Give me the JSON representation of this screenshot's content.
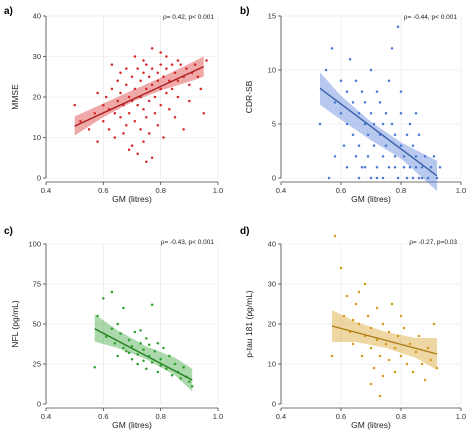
{
  "chart_data": [
    {
      "type": "scatter",
      "panel": "a)",
      "annotation": "ρ= 0.42, p< 0.001",
      "xlabel": "GM (litres)",
      "ylabel": "MMSE",
      "xlim": [
        0.4,
        1.0
      ],
      "ylim": [
        0,
        40
      ],
      "xticks": [
        "0.4",
        "0.6",
        "0.8",
        "1.0"
      ],
      "yticks": [
        "0",
        "10",
        "20",
        "30",
        "40"
      ],
      "grid": true,
      "color": "#d62728",
      "fit": {
        "x": [
          0.5,
          0.95
        ],
        "y": [
          12.8,
          27.5
        ]
      },
      "ci": {
        "x": [
          0.5,
          0.6,
          0.7,
          0.8,
          0.9,
          0.95
        ],
        "lower": [
          10.5,
          15.0,
          18.8,
          21.6,
          23.8,
          25.0
        ],
        "upper": [
          15.2,
          18.4,
          21.6,
          24.8,
          28.2,
          30.0
        ]
      },
      "points": [
        [
          0.5,
          18
        ],
        [
          0.52,
          14
        ],
        [
          0.55,
          12
        ],
        [
          0.57,
          16
        ],
        [
          0.58,
          9
        ],
        [
          0.6,
          18
        ],
        [
          0.6,
          14
        ],
        [
          0.61,
          20
        ],
        [
          0.62,
          17
        ],
        [
          0.62,
          12
        ],
        [
          0.63,
          22
        ],
        [
          0.64,
          16
        ],
        [
          0.64,
          10
        ],
        [
          0.65,
          19
        ],
        [
          0.65,
          24
        ],
        [
          0.66,
          15
        ],
        [
          0.66,
          21
        ],
        [
          0.67,
          18
        ],
        [
          0.67,
          11
        ],
        [
          0.68,
          27
        ],
        [
          0.68,
          23
        ],
        [
          0.68,
          13
        ],
        [
          0.69,
          20
        ],
        [
          0.69,
          16
        ],
        [
          0.7,
          25
        ],
        [
          0.7,
          19
        ],
        [
          0.7,
          8
        ],
        [
          0.71,
          22
        ],
        [
          0.71,
          14
        ],
        [
          0.72,
          27
        ],
        [
          0.72,
          18
        ],
        [
          0.72,
          6
        ],
        [
          0.73,
          24
        ],
        [
          0.73,
          20
        ],
        [
          0.73,
          12
        ],
        [
          0.74,
          26
        ],
        [
          0.74,
          17
        ],
        [
          0.74,
          9
        ],
        [
          0.75,
          28
        ],
        [
          0.75,
          22
        ],
        [
          0.75,
          15
        ],
        [
          0.76,
          25
        ],
        [
          0.76,
          19
        ],
        [
          0.76,
          11
        ],
        [
          0.77,
          27
        ],
        [
          0.77,
          23
        ],
        [
          0.77,
          5
        ],
        [
          0.78,
          20
        ],
        [
          0.78,
          16
        ],
        [
          0.79,
          26
        ],
        [
          0.79,
          24
        ],
        [
          0.79,
          13
        ],
        [
          0.8,
          28
        ],
        [
          0.8,
          22
        ],
        [
          0.8,
          18
        ],
        [
          0.81,
          25
        ],
        [
          0.81,
          10
        ],
        [
          0.82,
          27
        ],
        [
          0.82,
          21
        ],
        [
          0.83,
          24
        ],
        [
          0.83,
          17
        ],
        [
          0.84,
          28
        ],
        [
          0.84,
          22
        ],
        [
          0.85,
          26
        ],
        [
          0.85,
          15
        ],
        [
          0.86,
          24
        ],
        [
          0.86,
          20
        ],
        [
          0.87,
          28
        ],
        [
          0.88,
          25
        ],
        [
          0.88,
          12
        ],
        [
          0.89,
          27
        ],
        [
          0.9,
          23
        ],
        [
          0.91,
          26
        ],
        [
          0.92,
          28
        ],
        [
          0.93,
          25
        ],
        [
          0.95,
          16
        ],
        [
          0.96,
          29
        ],
        [
          0.63,
          28
        ],
        [
          0.71,
          30
        ],
        [
          0.77,
          32
        ],
        [
          0.82,
          30
        ],
        [
          0.66,
          26
        ],
        [
          0.74,
          29
        ],
        [
          0.8,
          31
        ],
        [
          0.69,
          7
        ],
        [
          0.75,
          4
        ],
        [
          0.58,
          21
        ],
        [
          0.86,
          29
        ],
        [
          0.9,
          19
        ],
        [
          0.94,
          22
        ]
      ]
    },
    {
      "type": "scatter",
      "panel": "b)",
      "annotation": "ρ= -0.44, p< 0.001",
      "xlabel": "GM (litres)",
      "ylabel": "CDR-SB",
      "xlim": [
        0.4,
        1.0
      ],
      "ylim": [
        0,
        15
      ],
      "xticks": [
        "0.4",
        "0.6",
        "0.8",
        "1.0"
      ],
      "yticks": [
        "0",
        "5",
        "10",
        "15"
      ],
      "grid": true,
      "color": "#4a78d4",
      "fit": {
        "x": [
          0.53,
          0.92
        ],
        "y": [
          8.3,
          0.2
        ]
      },
      "ci": {
        "x": [
          0.53,
          0.6,
          0.7,
          0.8,
          0.92
        ],
        "lower": [
          6.8,
          5.4,
          3.5,
          1.8,
          -1.2
        ],
        "upper": [
          9.8,
          7.6,
          5.2,
          3.3,
          1.6
        ]
      },
      "points": [
        [
          0.53,
          5
        ],
        [
          0.55,
          10
        ],
        [
          0.57,
          12
        ],
        [
          0.58,
          7
        ],
        [
          0.6,
          6
        ],
        [
          0.6,
          9
        ],
        [
          0.61,
          3
        ],
        [
          0.62,
          8
        ],
        [
          0.62,
          5
        ],
        [
          0.63,
          11
        ],
        [
          0.64,
          4
        ],
        [
          0.64,
          7
        ],
        [
          0.65,
          2
        ],
        [
          0.65,
          9
        ],
        [
          0.66,
          6
        ],
        [
          0.66,
          3
        ],
        [
          0.67,
          8
        ],
        [
          0.67,
          1
        ],
        [
          0.68,
          5
        ],
        [
          0.68,
          7
        ],
        [
          0.69,
          2
        ],
        [
          0.69,
          4
        ],
        [
          0.7,
          10
        ],
        [
          0.7,
          6
        ],
        [
          0.7,
          0
        ],
        [
          0.71,
          3
        ],
        [
          0.71,
          5
        ],
        [
          0.72,
          8
        ],
        [
          0.72,
          1
        ],
        [
          0.73,
          4
        ],
        [
          0.73,
          7
        ],
        [
          0.74,
          2
        ],
        [
          0.74,
          0
        ],
        [
          0.75,
          6
        ],
        [
          0.75,
          3
        ],
        [
          0.76,
          9
        ],
        [
          0.76,
          1
        ],
        [
          0.77,
          5
        ],
        [
          0.77,
          12
        ],
        [
          0.78,
          2
        ],
        [
          0.78,
          4
        ],
        [
          0.79,
          14
        ],
        [
          0.79,
          0
        ],
        [
          0.8,
          3
        ],
        [
          0.8,
          6
        ],
        [
          0.81,
          1
        ],
        [
          0.81,
          2
        ],
        [
          0.82,
          4
        ],
        [
          0.82,
          0
        ],
        [
          0.83,
          5
        ],
        [
          0.83,
          1
        ],
        [
          0.84,
          3
        ],
        [
          0.84,
          0
        ],
        [
          0.85,
          2
        ],
        [
          0.85,
          1
        ],
        [
          0.86,
          0
        ],
        [
          0.86,
          4
        ],
        [
          0.87,
          1
        ],
        [
          0.87,
          0
        ],
        [
          0.88,
          2
        ],
        [
          0.89,
          0
        ],
        [
          0.9,
          1
        ],
        [
          0.91,
          2
        ],
        [
          0.92,
          0
        ],
        [
          0.93,
          1
        ],
        [
          0.66,
          0
        ],
        [
          0.72,
          0
        ],
        [
          0.78,
          1
        ],
        [
          0.62,
          1
        ],
        [
          0.58,
          2
        ],
        [
          0.56,
          0
        ],
        [
          0.68,
          1
        ],
        [
          0.74,
          5
        ],
        [
          0.8,
          8
        ],
        [
          0.85,
          6
        ]
      ]
    },
    {
      "type": "scatter",
      "panel": "c)",
      "annotation": "ρ= -0.43, p< 0.001",
      "xlabel": "GM (litres)",
      "ylabel": "NFL (pg/mL)",
      "xlim": [
        0.4,
        1.0
      ],
      "ylim": [
        0,
        100
      ],
      "xticks": [
        "0.4",
        "0.6",
        "0.8",
        "1.0"
      ],
      "yticks": [
        "0",
        "25",
        "50",
        "75",
        "100"
      ],
      "grid": true,
      "color": "#2ca02c",
      "fit": {
        "x": [
          0.57,
          0.91
        ],
        "y": [
          47,
          15
        ]
      },
      "ci": {
        "x": [
          0.57,
          0.65,
          0.75,
          0.85,
          0.91
        ],
        "lower": [
          39,
          35,
          28,
          18,
          8
        ],
        "upper": [
          56,
          46,
          36,
          29,
          22
        ]
      },
      "points": [
        [
          0.58,
          55
        ],
        [
          0.6,
          66
        ],
        [
          0.61,
          42
        ],
        [
          0.63,
          70
        ],
        [
          0.63,
          47
        ],
        [
          0.64,
          38
        ],
        [
          0.65,
          30
        ],
        [
          0.66,
          44
        ],
        [
          0.67,
          35
        ],
        [
          0.67,
          60
        ],
        [
          0.68,
          33
        ],
        [
          0.69,
          40
        ],
        [
          0.7,
          28
        ],
        [
          0.7,
          36
        ],
        [
          0.71,
          45
        ],
        [
          0.72,
          31
        ],
        [
          0.72,
          25
        ],
        [
          0.73,
          38
        ],
        [
          0.74,
          27
        ],
        [
          0.74,
          34
        ],
        [
          0.75,
          22
        ],
        [
          0.75,
          41
        ],
        [
          0.76,
          30
        ],
        [
          0.77,
          62
        ],
        [
          0.77,
          26
        ],
        [
          0.78,
          33
        ],
        [
          0.79,
          20
        ],
        [
          0.8,
          28
        ],
        [
          0.8,
          24
        ],
        [
          0.81,
          35
        ],
        [
          0.82,
          22
        ],
        [
          0.83,
          30
        ],
        [
          0.84,
          18
        ],
        [
          0.85,
          25
        ],
        [
          0.86,
          20
        ],
        [
          0.87,
          16
        ],
        [
          0.88,
          23
        ],
        [
          0.89,
          17
        ],
        [
          0.9,
          14
        ],
        [
          0.91,
          11
        ],
        [
          0.57,
          23
        ],
        [
          0.65,
          50
        ],
        [
          0.73,
          46
        ],
        [
          0.79,
          38
        ],
        [
          0.69,
          32
        ],
        [
          0.76,
          37
        ]
      ]
    },
    {
      "type": "scatter",
      "panel": "d)",
      "annotation": "ρ= -0.27, p=0.03",
      "xlabel": "GM (litres)",
      "ylabel": "p-tau 181 (pg/mL)",
      "xlim": [
        0.4,
        1.0
      ],
      "ylim": [
        0,
        40
      ],
      "xticks": [
        "0.4",
        "0.6",
        "0.8",
        "1.0"
      ],
      "yticks": [
        "0",
        "10",
        "20",
        "30",
        "40"
      ],
      "grid": true,
      "color": "#d69a1a",
      "fit": {
        "x": [
          0.57,
          0.92
        ],
        "y": [
          19.5,
          12.5
        ]
      },
      "ci": {
        "x": [
          0.57,
          0.65,
          0.75,
          0.85,
          0.92
        ],
        "lower": [
          15.5,
          15.5,
          14.0,
          11.5,
          8.5
        ],
        "upper": [
          23.5,
          20.5,
          18.0,
          16.5,
          16.5
        ]
      },
      "points": [
        [
          0.58,
          42
        ],
        [
          0.6,
          34
        ],
        [
          0.61,
          22
        ],
        [
          0.62,
          27
        ],
        [
          0.63,
          18
        ],
        [
          0.64,
          15
        ],
        [
          0.65,
          25
        ],
        [
          0.66,
          20
        ],
        [
          0.67,
          12
        ],
        [
          0.68,
          30
        ],
        [
          0.68,
          17
        ],
        [
          0.69,
          22
        ],
        [
          0.7,
          14
        ],
        [
          0.7,
          19
        ],
        [
          0.71,
          9
        ],
        [
          0.72,
          16
        ],
        [
          0.72,
          24
        ],
        [
          0.73,
          12
        ],
        [
          0.74,
          20
        ],
        [
          0.74,
          7
        ],
        [
          0.75,
          15
        ],
        [
          0.76,
          18
        ],
        [
          0.76,
          11
        ],
        [
          0.77,
          25
        ],
        [
          0.78,
          14
        ],
        [
          0.78,
          8
        ],
        [
          0.79,
          17
        ],
        [
          0.8,
          12
        ],
        [
          0.81,
          19
        ],
        [
          0.82,
          10
        ],
        [
          0.83,
          15
        ],
        [
          0.84,
          8
        ],
        [
          0.85,
          13
        ],
        [
          0.86,
          17
        ],
        [
          0.87,
          10
        ],
        [
          0.88,
          6
        ],
        [
          0.89,
          14
        ],
        [
          0.9,
          11
        ],
        [
          0.91,
          20
        ],
        [
          0.92,
          9
        ],
        [
          0.57,
          12
        ],
        [
          0.66,
          28
        ],
        [
          0.73,
          2
        ],
        [
          0.8,
          22
        ],
        [
          0.7,
          5
        ],
        [
          0.64,
          21
        ]
      ]
    }
  ]
}
